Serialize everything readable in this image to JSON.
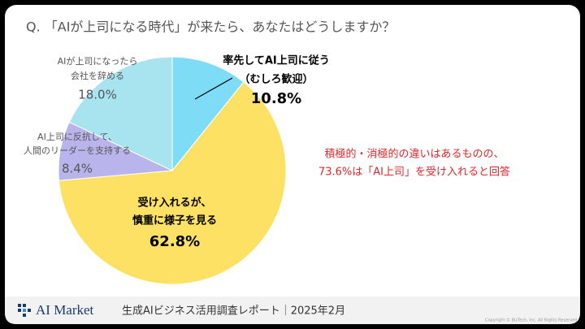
{
  "header": {
    "title": "Q. 「AIが上司になる時代」が来たら、あなたはどうしますか？"
  },
  "chart_data": {
    "type": "pie",
    "categories": [
      [
        "率先してAI上司に従う",
        "（むしろ歓迎）"
      ],
      [
        "受け入れるが、",
        "慎重に様子を見る"
      ],
      [
        "AI上司に反抗して、",
        "人間のリーダーを支持する"
      ],
      [
        "AIが上司になったら",
        "会社を辞める"
      ]
    ],
    "values": [
      10.8,
      62.8,
      8.4,
      18.0
    ],
    "value_labels": [
      "10.8%",
      "62.8%",
      "8.4%",
      "18.0%"
    ],
    "colors": [
      "#7fdcf7",
      "#fde165",
      "#b9b4ec",
      "#a8e3f0"
    ],
    "annotation": [
      "積極的・消極的の違いはあるものの、",
      "73.6%は「AI上司」を受け入れると回答"
    ]
  },
  "footer": {
    "logo": "AI Market",
    "report": "生成AIビジネス活用調査レポート｜2025年2月",
    "copyright": "Copyright © BizTech, Inc. All Rights Reserved."
  }
}
